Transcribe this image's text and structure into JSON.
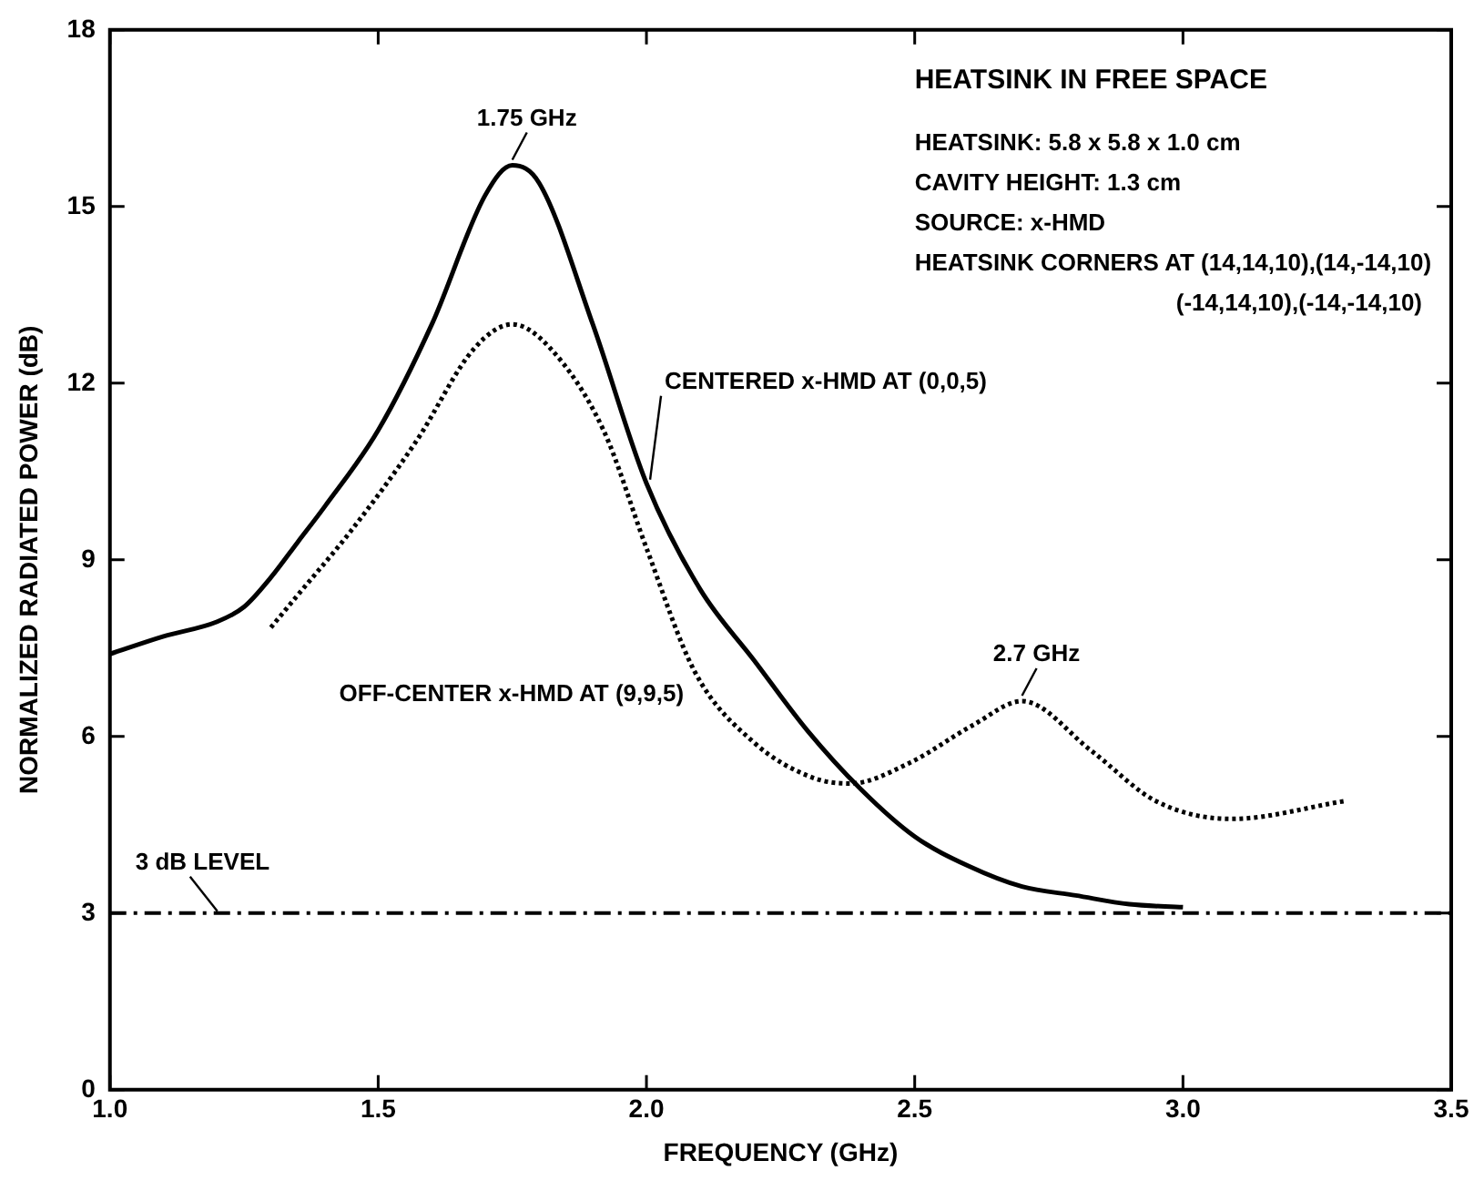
{
  "chart_data": {
    "type": "line",
    "title": "HEATSINK IN FREE SPACE",
    "xlabel": "FREQUENCY (GHz)",
    "ylabel": "NORMALIZED RADIATED POWER (dB)",
    "xlim": [
      1,
      3.5
    ],
    "xticks": [
      {
        "value": 1,
        "label": "1.0"
      },
      {
        "value": 1.5,
        "label": "1.5"
      },
      {
        "value": 2,
        "label": "2.0"
      },
      {
        "value": 2.5,
        "label": "2.5"
      },
      {
        "value": 3,
        "label": "3.0"
      },
      {
        "value": 3.5,
        "label": "3.5"
      }
    ],
    "ylim": [
      0,
      18
    ],
    "yticks": [
      0,
      3,
      6,
      9,
      12,
      15,
      18
    ],
    "grid": false,
    "legend": false,
    "marker": "none",
    "series": [
      {
        "name": "CENTERED x-HMD AT (0,0,5)",
        "color": "#000000",
        "line_style": "solid",
        "x": [
          1.0,
          1.1,
          1.2,
          1.25,
          1.3,
          1.35,
          1.4,
          1.5,
          1.6,
          1.7,
          1.75,
          1.8,
          1.9,
          2.0,
          2.1,
          2.2,
          2.3,
          2.4,
          2.5,
          2.6,
          2.7,
          2.8,
          2.9,
          3.0
        ],
        "values": [
          7.4,
          7.7,
          7.95,
          8.2,
          8.7,
          9.3,
          9.9,
          11.2,
          13.0,
          15.2,
          15.7,
          15.4,
          13.0,
          10.3,
          8.5,
          7.3,
          6.1,
          5.1,
          4.3,
          3.8,
          3.45,
          3.3,
          3.15,
          3.1
        ]
      },
      {
        "name": "OFF-CENTER x-HMD AT (9,9,5)",
        "color": "#000000",
        "line_style": "dotted",
        "x": [
          1.3,
          1.35,
          1.45,
          1.57,
          1.68,
          1.75,
          1.82,
          1.92,
          2.0,
          2.09,
          2.2,
          2.31,
          2.38,
          2.49,
          2.61,
          2.7,
          2.83,
          2.95,
          3.09,
          3.3
        ],
        "values": [
          7.85,
          8.4,
          9.5,
          11.0,
          12.6,
          13.0,
          12.6,
          11.2,
          9.2,
          7.1,
          5.9,
          5.3,
          5.2,
          5.55,
          6.2,
          6.6,
          5.75,
          4.9,
          4.6,
          4.9
        ]
      }
    ],
    "ref_lines": [
      {
        "axis": "y",
        "value": 3,
        "label": "3 dB LEVEL",
        "color": "#000000",
        "line_style": "dashed"
      }
    ],
    "annotations": [
      {
        "text": "1.75 GHz",
        "x": 1.75,
        "y": 15.7
      },
      {
        "text": "2.7 GHz",
        "x": 2.7,
        "y": 6.6
      },
      "HEATSINK: 5.8 x 5.8 x 1.0 cm",
      "CAVITY HEIGHT: 1.3 cm",
      "SOURCE: x-HMD",
      "HEATSINK CORNERS AT (14,14,10),(14,-14,10)",
      "(-14,14,10),(-14,-14,10)"
    ]
  }
}
